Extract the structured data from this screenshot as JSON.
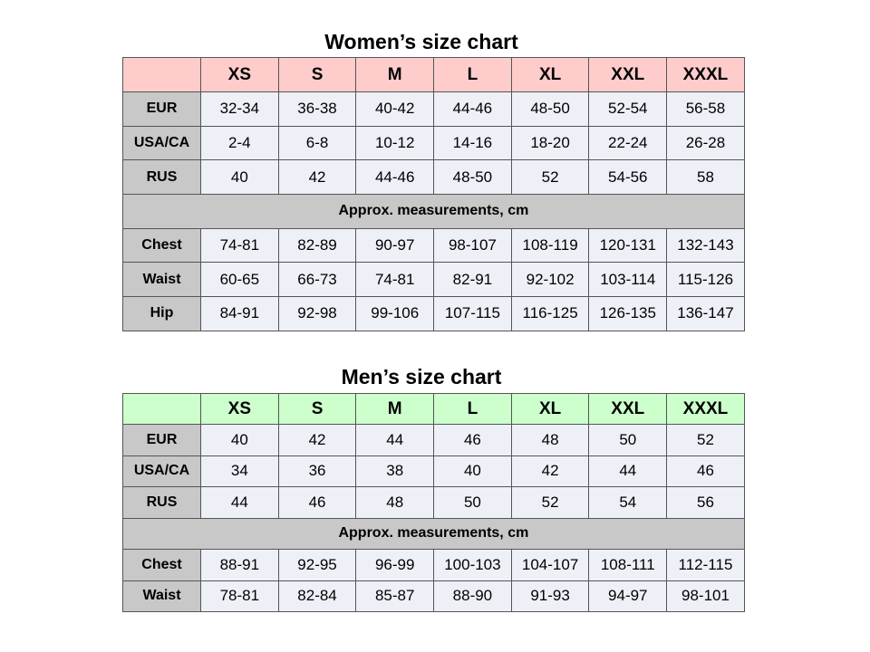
{
  "women": {
    "title": "Women’s size chart",
    "sizes": [
      "XS",
      "S",
      "M",
      "L",
      "XL",
      "XXL",
      "XXXL"
    ],
    "rows_top": [
      {
        "label": "EUR",
        "values": [
          "32-34",
          "36-38",
          "40-42",
          "44-46",
          "48-50",
          "52-54",
          "56-58"
        ]
      },
      {
        "label": "USA/CA",
        "values": [
          "2-4",
          "6-8",
          "10-12",
          "14-16",
          "18-20",
          "22-24",
          "26-28"
        ]
      },
      {
        "label": "RUS",
        "values": [
          "40",
          "42",
          "44-46",
          "48-50",
          "52",
          "54-56",
          "58"
        ]
      }
    ],
    "band": "Approx. measurements, cm",
    "rows_bottom": [
      {
        "label": "Chest",
        "values": [
          "74-81",
          "82-89",
          "90-97",
          "98-107",
          "108-119",
          "120-131",
          "132-143"
        ]
      },
      {
        "label": "Waist",
        "values": [
          "60-65",
          "66-73",
          "74-81",
          "82-91",
          "92-102",
          "103-114",
          "115-126"
        ]
      },
      {
        "label": "Hip",
        "values": [
          "84-91",
          "92-98",
          "99-106",
          "107-115",
          "116-125",
          "126-135",
          "136-147"
        ]
      }
    ]
  },
  "men": {
    "title": "Men’s size chart",
    "sizes": [
      "XS",
      "S",
      "M",
      "L",
      "XL",
      "XXL",
      "XXXL"
    ],
    "rows_top": [
      {
        "label": "EUR",
        "values": [
          "40",
          "42",
          "44",
          "46",
          "48",
          "50",
          "52"
        ]
      },
      {
        "label": "USA/CA",
        "values": [
          "34",
          "36",
          "38",
          "40",
          "42",
          "44",
          "46"
        ]
      },
      {
        "label": "RUS",
        "values": [
          "44",
          "46",
          "48",
          "50",
          "52",
          "54",
          "56"
        ]
      }
    ],
    "band": "Approx. measurements, cm",
    "rows_bottom": [
      {
        "label": "Chest",
        "values": [
          "88-91",
          "92-95",
          "96-99",
          "100-103",
          "104-107",
          "108-111",
          "112-115"
        ]
      },
      {
        "label": "Waist",
        "values": [
          "78-81",
          "82-84",
          "85-87",
          "88-90",
          "91-93",
          "94-97",
          "98-101"
        ]
      }
    ]
  }
}
